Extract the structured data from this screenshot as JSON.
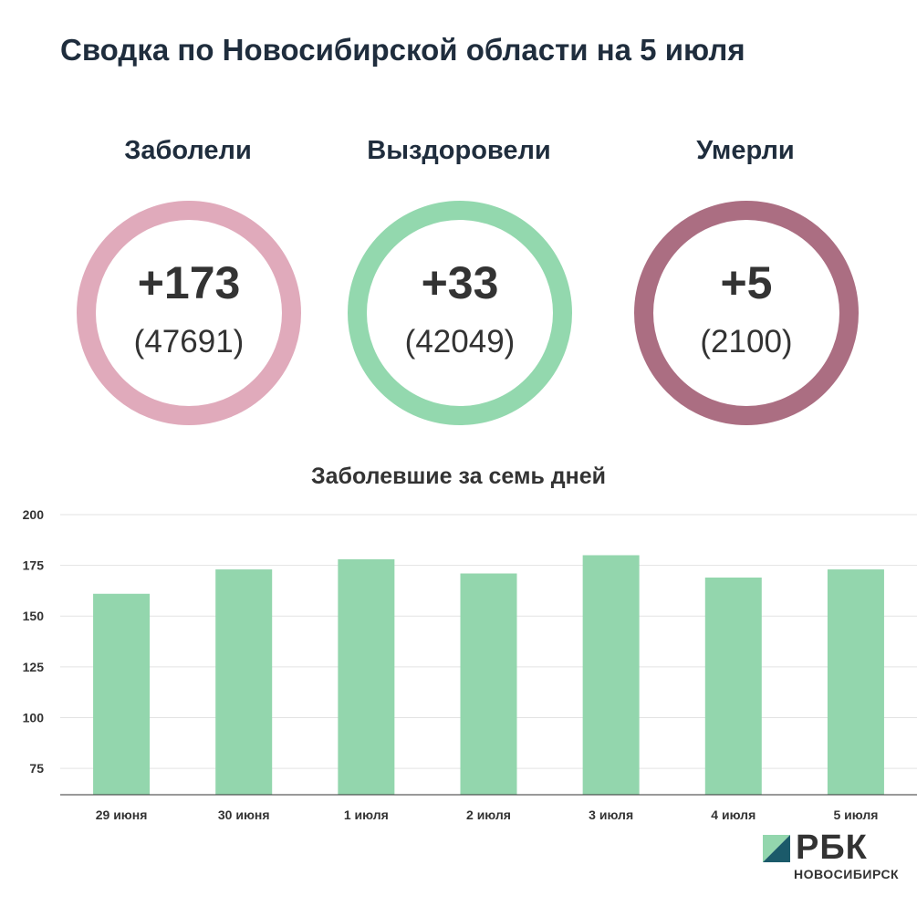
{
  "title": "Сводка по Новосибирской области на 5 июля",
  "stats": [
    {
      "label": "Заболели",
      "delta": "+173",
      "total": "(47691)",
      "color": "#e0aabb"
    },
    {
      "label": "Выздоровели",
      "delta": "+33",
      "total": "(42049)",
      "color": "#93d8ae"
    },
    {
      "label": "Умерли",
      "delta": "+5",
      "total": "(2100)",
      "color": "#ab6e82"
    }
  ],
  "chart_data": {
    "type": "bar",
    "title": "Заболевшие за семь дней",
    "categories": [
      "29 июня",
      "30 июня",
      "1 июля",
      "2 июля",
      "3 июля",
      "4 июля",
      "5 июля"
    ],
    "values": [
      161,
      173,
      178,
      171,
      180,
      169,
      173
    ],
    "ylim": [
      62,
      200
    ],
    "yticks": [
      75,
      100,
      125,
      150,
      175,
      200
    ],
    "grid": true,
    "bar_color": "#93d6ad"
  },
  "logo": {
    "name": "РБК",
    "subtitle": "НОВОСИБИРСК",
    "colors": [
      "#1b5a6a",
      "#93d6ad"
    ]
  }
}
